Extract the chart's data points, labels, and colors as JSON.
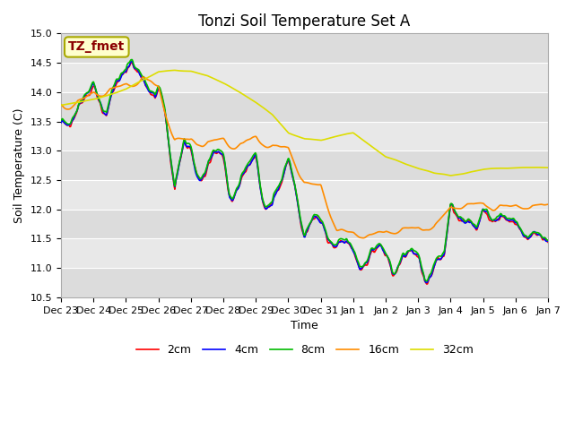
{
  "title": "Tonzi Soil Temperature Set A",
  "xlabel": "Time",
  "ylabel": "Soil Temperature (C)",
  "ylim": [
    10.5,
    15.0
  ],
  "annotation_text": "TZ_fmet",
  "annotation_color": "#8B0000",
  "annotation_bg": "#FFFFCC",
  "annotation_border": "#AAAA00",
  "series_colors": {
    "2cm": "#FF0000",
    "4cm": "#0000FF",
    "8cm": "#00BB00",
    "16cm": "#FF8C00",
    "32cm": "#DDDD00"
  },
  "legend_labels": [
    "2cm",
    "4cm",
    "8cm",
    "16cm",
    "32cm"
  ],
  "tick_labels": [
    "Dec 23",
    "Dec 24",
    "Dec 25",
    "Dec 26",
    "Dec 27",
    "Dec 28",
    "Dec 29",
    "Dec 30",
    "Dec 31",
    "Jan 1",
    "Jan 2",
    "Jan 3",
    "Jan 4",
    "Jan 5",
    "Jan 6",
    "Jan 7"
  ],
  "band_colors": [
    "#DCDCDC",
    "#E8E8E8"
  ],
  "grid_line_color": "#FFFFFF",
  "linewidth": 1.2,
  "title_fontsize": 12,
  "axis_fontsize": 9,
  "tick_fontsize": 8
}
